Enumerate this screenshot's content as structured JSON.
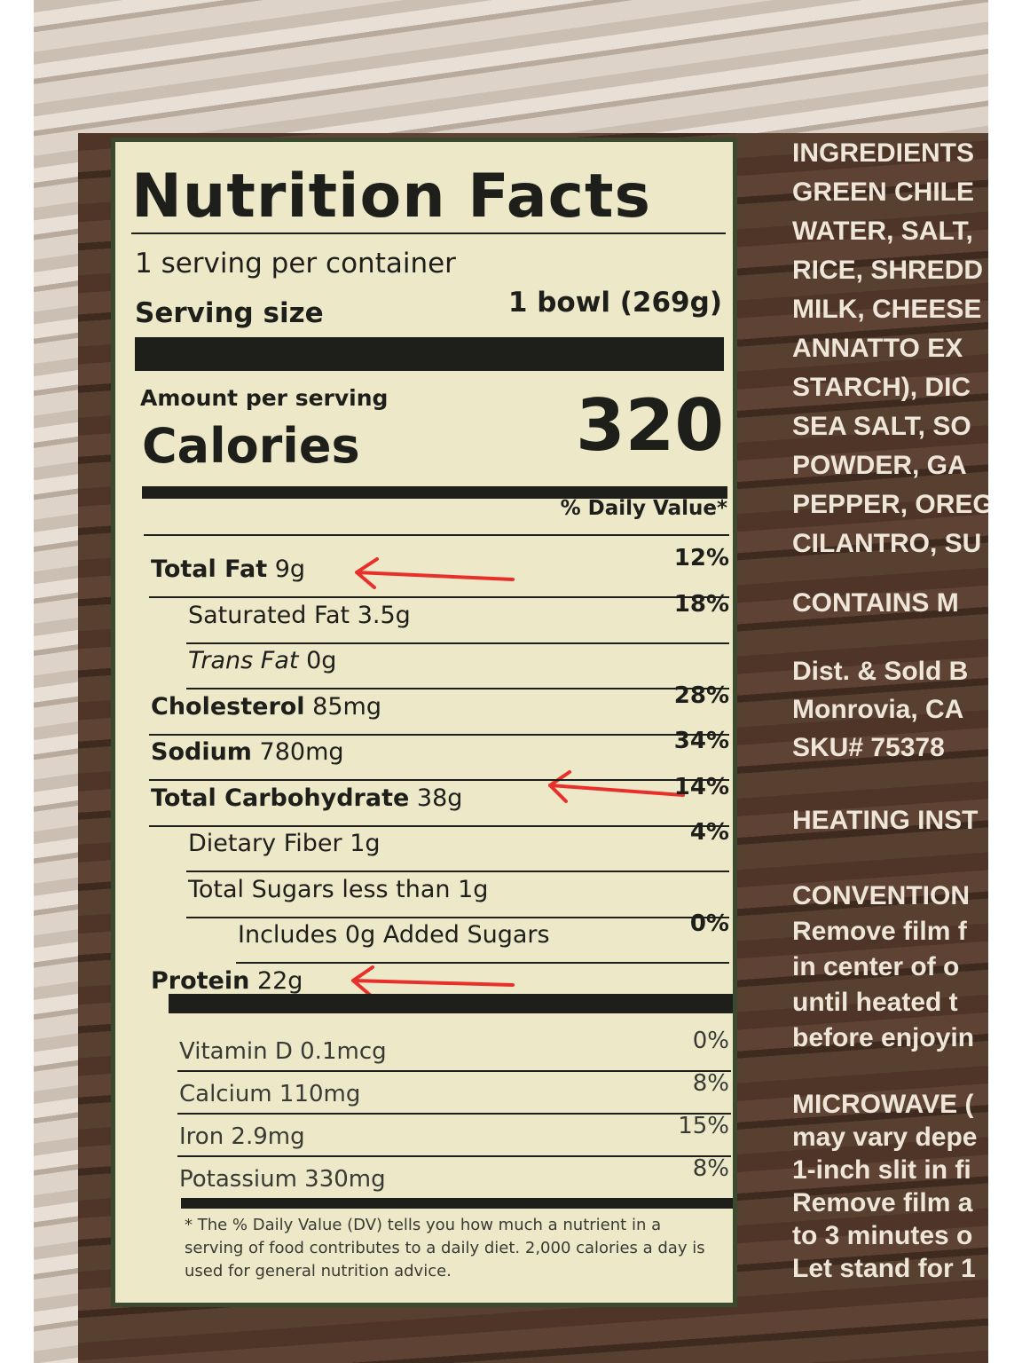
{
  "label": {
    "title": "Nutrition Facts",
    "servings": "1 serving per container",
    "serving_size_label": "Serving size",
    "serving_size_value": "1 bowl (269g)",
    "amount_per_serving": "Amount per serving",
    "calories_label": "Calories",
    "calories_value": "320",
    "dv_header": "% Daily Value*",
    "rows": [
      {
        "name": "Total Fat",
        "amount": "9g",
        "dv": "12%"
      },
      {
        "name": "Saturated Fat",
        "amount": "3.5g",
        "dv": "18%"
      },
      {
        "name": "Trans Fat",
        "amount": "0g"
      },
      {
        "name": "Cholesterol",
        "amount": "85mg",
        "dv": "28%"
      },
      {
        "name": "Sodium",
        "amount": "780mg",
        "dv": "34%"
      },
      {
        "name": "Total Carbohydrate",
        "amount": "38g",
        "dv": "14%"
      },
      {
        "name": "Dietary Fiber",
        "amount": "1g",
        "dv": "4%"
      },
      {
        "name": "Total Sugars less than 1g"
      },
      {
        "name": "Includes 0g Added Sugars",
        "dv": "0%"
      },
      {
        "name": "Protein",
        "amount": "22g"
      }
    ],
    "vitamins": [
      {
        "name": "Vitamin D 0.1mcg",
        "dv": "0%"
      },
      {
        "name": "Calcium 110mg",
        "dv": "8%"
      },
      {
        "name": "Iron 2.9mg",
        "dv": "15%"
      },
      {
        "name": "Potassium 330mg",
        "dv": "8%"
      }
    ],
    "footnote": "* The % Daily Value (DV) tells you how much a nutrient in a serving of food contributes to a daily diet. 2,000 calories a day is used for general nutrition advice."
  },
  "side_panel": {
    "ingredients": [
      "INGREDIENTS",
      "GREEN CHILE",
      "WATER, SALT,",
      "RICE, SHREDD",
      "MILK, CHEESE",
      "ANNATTO EX",
      "STARCH), DIC",
      "SEA SALT, SO",
      "POWDER, GA",
      "PEPPER, OREG",
      "CILANTRO, SU"
    ],
    "contains": "CONTAINS M",
    "distributor": [
      "Dist. & Sold B",
      "Monrovia, CA",
      "SKU# 75378"
    ],
    "heating": "HEATING INST",
    "conventional": [
      "CONVENTION",
      "Remove film f",
      "in center of o",
      "until heated t",
      "before enjoyin"
    ],
    "microwave": [
      "MICROWAVE (",
      "may vary depe",
      "1-inch slit in fi",
      "Remove film a",
      "to 3 minutes o",
      "Let stand for 1"
    ]
  }
}
